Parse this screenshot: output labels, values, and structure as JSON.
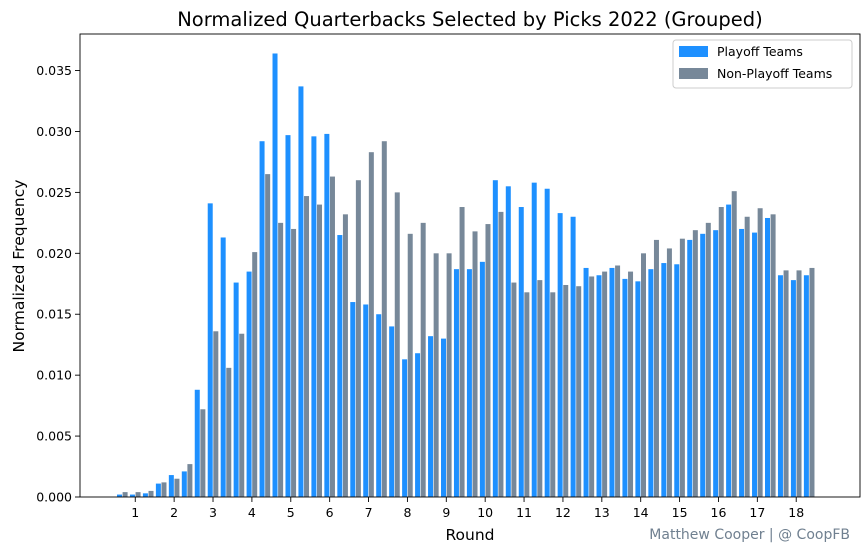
{
  "chart_data": {
    "type": "bar",
    "title": "Normalized Quarterbacks Selected by Picks 2022 (Grouped)",
    "xlabel": "Round",
    "ylabel": "Normalized Frequency",
    "ylim": [
      0,
      0.038
    ],
    "yticks": [
      "0.000",
      "0.005",
      "0.010",
      "0.015",
      "0.020",
      "0.025",
      "0.030",
      "0.035"
    ],
    "xticks": [
      "1",
      "2",
      "3",
      "4",
      "5",
      "6",
      "7",
      "8",
      "9",
      "10",
      "11",
      "12",
      "13",
      "14",
      "15",
      "16",
      "17",
      "18"
    ],
    "grid": false,
    "legend_position": "top-right",
    "groups_per_round": 3,
    "series": [
      {
        "name": "Playoff Teams",
        "color": "#1e90ff",
        "values": [
          0.0002,
          0.0002,
          0.0003,
          0.0011,
          0.0018,
          0.0021,
          0.0088,
          0.0241,
          0.0213,
          0.0176,
          0.0185,
          0.0292,
          0.0364,
          0.0297,
          0.0337,
          0.0296,
          0.0298,
          0.0215,
          0.016,
          0.0158,
          0.015,
          0.014,
          0.0113,
          0.0118,
          0.0132,
          0.013,
          0.0187,
          0.0187,
          0.0193,
          0.026,
          0.0255,
          0.0238,
          0.0258,
          0.0253,
          0.0233,
          0.023,
          0.0188,
          0.0182,
          0.0188,
          0.0179,
          0.0177,
          0.0187,
          0.0192,
          0.0191,
          0.0211,
          0.0216,
          0.0219,
          0.024,
          0.022,
          0.0217,
          0.0229,
          0.0182,
          0.0178,
          0.0182
        ]
      },
      {
        "name": "Non-Playoff Teams",
        "color": "#778899",
        "values": [
          0.0004,
          0.0004,
          0.0005,
          0.0012,
          0.0015,
          0.0027,
          0.0072,
          0.0136,
          0.0106,
          0.0134,
          0.0201,
          0.0265,
          0.0225,
          0.022,
          0.0247,
          0.024,
          0.0263,
          0.0232,
          0.026,
          0.0283,
          0.0292,
          0.025,
          0.0216,
          0.0225,
          0.02,
          0.02,
          0.0238,
          0.0218,
          0.0224,
          0.0234,
          0.0176,
          0.0168,
          0.0178,
          0.0168,
          0.0174,
          0.0173,
          0.0181,
          0.0185,
          0.019,
          0.0185,
          0.02,
          0.0211,
          0.0204,
          0.0212,
          0.0219,
          0.0225,
          0.0238,
          0.0251,
          0.023,
          0.0237,
          0.0232,
          0.0186,
          0.0186,
          0.0188
        ]
      }
    ]
  },
  "attribution": "Matthew Cooper | @ CoopFB"
}
